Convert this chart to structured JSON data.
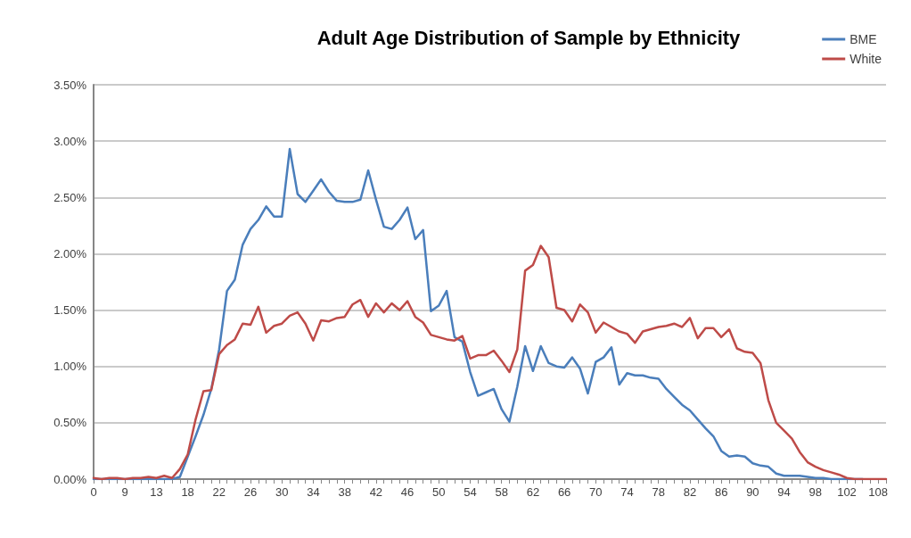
{
  "chart_data": {
    "type": "line",
    "title": "Adult Age Distribution of Sample by Ethnicity",
    "categories": [
      "0",
      null,
      null,
      null,
      "9",
      null,
      null,
      null,
      "13",
      null,
      null,
      null,
      "18",
      null,
      null,
      null,
      "22",
      null,
      null,
      null,
      "26",
      null,
      null,
      null,
      "30",
      null,
      null,
      null,
      "34",
      null,
      null,
      null,
      "38",
      null,
      null,
      null,
      "42",
      null,
      null,
      null,
      "46",
      null,
      null,
      null,
      "50",
      null,
      null,
      null,
      "54",
      null,
      null,
      null,
      "58",
      null,
      null,
      null,
      "62",
      null,
      null,
      null,
      "66",
      null,
      null,
      null,
      "70",
      null,
      null,
      null,
      "74",
      null,
      null,
      null,
      "78",
      null,
      null,
      null,
      "82",
      null,
      null,
      null,
      "86",
      null,
      null,
      null,
      "90",
      null,
      null,
      null,
      "94",
      null,
      null,
      null,
      "98",
      null,
      null,
      null,
      "102",
      null,
      null,
      null,
      "108",
      null
    ],
    "series": [
      {
        "name": "BME",
        "color": "#4a7ebb",
        "values": [
          0,
          0,
          0,
          0,
          0,
          0,
          0,
          0,
          0,
          0,
          0,
          0.02,
          0.2,
          0.38,
          0.57,
          0.8,
          1.15,
          1.67,
          1.77,
          2.08,
          2.22,
          2.3,
          2.42,
          2.33,
          2.33,
          2.93,
          2.53,
          2.46,
          2.56,
          2.66,
          2.55,
          2.47,
          2.46,
          2.46,
          2.48,
          2.74,
          2.48,
          2.24,
          2.22,
          2.3,
          2.41,
          2.13,
          2.21,
          1.49,
          1.54,
          1.67,
          1.26,
          1.22,
          0.95,
          0.74,
          0.77,
          0.8,
          0.62,
          0.51,
          0.82,
          1.18,
          0.96,
          1.18,
          1.03,
          1.0,
          0.99,
          1.08,
          0.98,
          0.76,
          1.04,
          1.08,
          1.17,
          0.84,
          0.94,
          0.92,
          0.92,
          0.9,
          0.89,
          0.8,
          0.73,
          0.66,
          0.61,
          0.53,
          0.45,
          0.38,
          0.25,
          0.2,
          0.21,
          0.2,
          0.14,
          0.12,
          0.11,
          0.05,
          0.03,
          0.03,
          0.03,
          0.02,
          0.01,
          0.01,
          0,
          0,
          0,
          0,
          0,
          null,
          null,
          null
        ]
      },
      {
        "name": "White",
        "color": "#be4b48",
        "values": [
          0.01,
          0,
          0.01,
          0.01,
          0,
          0.01,
          0.01,
          0.02,
          0.01,
          0.03,
          0.01,
          0.09,
          0.22,
          0.53,
          0.78,
          0.79,
          1.11,
          1.19,
          1.24,
          1.38,
          1.37,
          1.53,
          1.3,
          1.36,
          1.38,
          1.45,
          1.48,
          1.38,
          1.23,
          1.41,
          1.4,
          1.43,
          1.44,
          1.55,
          1.59,
          1.44,
          1.56,
          1.48,
          1.56,
          1.5,
          1.58,
          1.44,
          1.39,
          1.28,
          1.26,
          1.24,
          1.23,
          1.27,
          1.07,
          1.1,
          1.1,
          1.14,
          1.05,
          0.95,
          1.15,
          1.85,
          1.9,
          2.07,
          1.97,
          1.52,
          1.5,
          1.4,
          1.55,
          1.48,
          1.3,
          1.39,
          1.35,
          1.31,
          1.29,
          1.21,
          1.31,
          1.33,
          1.35,
          1.36,
          1.38,
          1.35,
          1.43,
          1.25,
          1.34,
          1.34,
          1.26,
          1.33,
          1.16,
          1.13,
          1.12,
          1.03,
          0.7,
          0.5,
          0.43,
          0.36,
          0.24,
          0.15,
          0.11,
          0.08,
          0.06,
          0.04,
          0.01,
          0,
          0,
          0,
          0,
          0
        ]
      }
    ],
    "ylim": [
      0,
      3.5
    ],
    "yticks": [
      {
        "value": 0,
        "label": "0.00%"
      },
      {
        "value": 0.5,
        "label": "0.50%"
      },
      {
        "value": 1,
        "label": "1.00%"
      },
      {
        "value": 1.5,
        "label": "1.50%"
      },
      {
        "value": 2,
        "label": "2.00%"
      },
      {
        "value": 2.5,
        "label": "2.50%"
      },
      {
        "value": 3,
        "label": "3.00%"
      },
      {
        "value": 3.5,
        "label": "3.50%"
      }
    ],
    "grid": "y",
    "legend": "top right",
    "marker": "none",
    "line_style": "solid"
  }
}
